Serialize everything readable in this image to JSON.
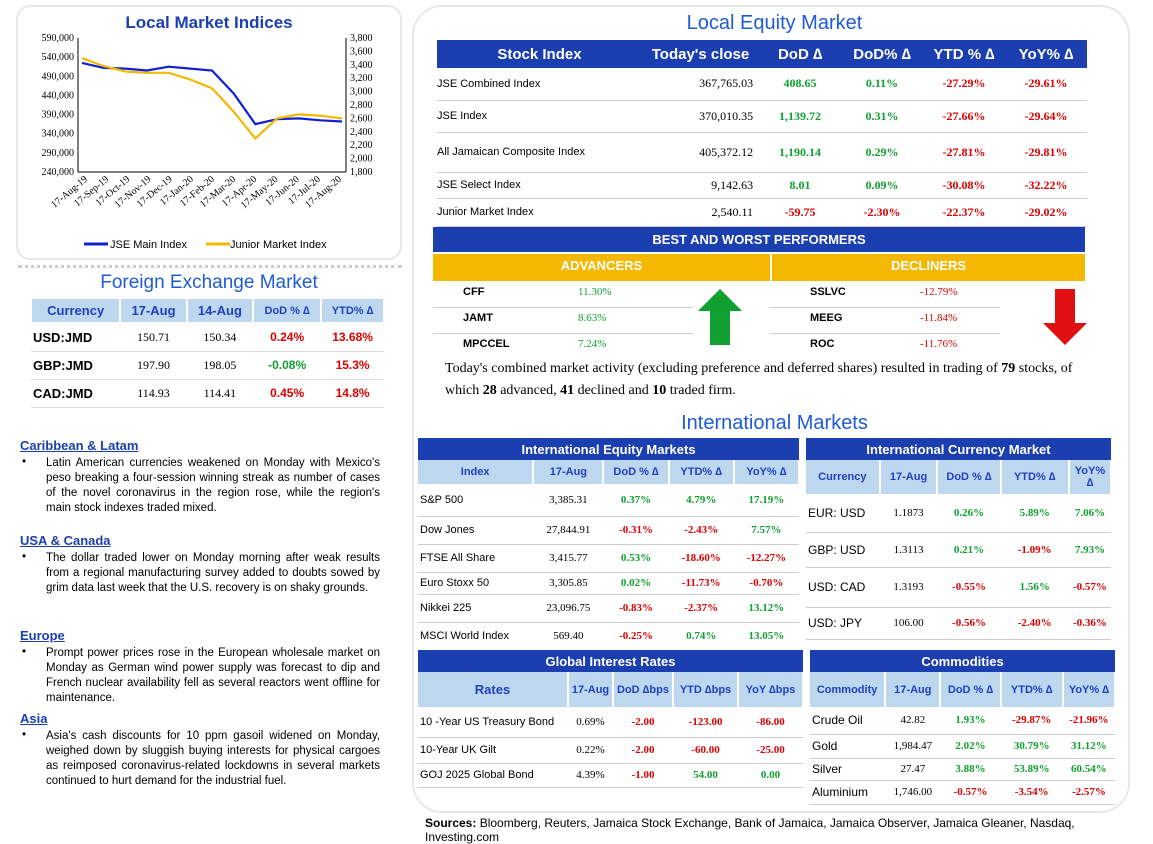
{
  "chart": {
    "title": "Local Market Indices",
    "left_ticks": [
      "590,000",
      "540,000",
      "490,000",
      "440,000",
      "390,000",
      "340,000",
      "290,000",
      "240,000"
    ],
    "right_ticks": [
      "3,800",
      "3,600",
      "3,400",
      "3,200",
      "3,000",
      "2,800",
      "2,600",
      "2,400",
      "2,200",
      "2,000",
      "1,800"
    ],
    "x_ticks": [
      "17-Aug-19",
      "17-Sep-19",
      "17-Oct-19",
      "17-Nov-19",
      "17-Dec-19",
      "17-Jan-20",
      "17-Feb-20",
      "17-Mar-20",
      "17-Apr-20",
      "17-May-20",
      "17-Jun-20",
      "17-Jul-20",
      "17-Aug-20"
    ],
    "legend_main": "JSE Main Index",
    "legend_junior": "Junior Market Index"
  },
  "chart_data": {
    "type": "line",
    "title": "Local Market Indices",
    "x": [
      "17-Aug-19",
      "17-Sep-19",
      "17-Oct-19",
      "17-Nov-19",
      "17-Dec-19",
      "17-Jan-20",
      "17-Feb-20",
      "17-Mar-20",
      "17-Apr-20",
      "17-May-20",
      "17-Jun-20",
      "17-Jul-20",
      "17-Aug-20"
    ],
    "series": [
      {
        "name": "JSE Main Index",
        "axis": "left",
        "color": "#1020d0",
        "values": [
          525000,
          512000,
          510000,
          505000,
          515000,
          510000,
          505000,
          445000,
          365000,
          378000,
          380000,
          375000,
          372000
        ]
      },
      {
        "name": "Junior Market Index",
        "axis": "right",
        "color": "#f5b800",
        "values": [
          3500,
          3380,
          3300,
          3280,
          3280,
          3180,
          3050,
          2700,
          2300,
          2600,
          2660,
          2640,
          2600
        ]
      }
    ],
    "ylim_left": [
      240000,
      590000
    ],
    "ylim_right": [
      1800,
      3800
    ]
  },
  "fx": {
    "title": "Foreign Exchange Market",
    "headers": [
      "Currency",
      "17-Aug",
      "14-Aug",
      "DoD % ∆",
      "YTD% ∆"
    ],
    "rows": [
      {
        "c": "USD:JMD",
        "a": "150.71",
        "b": "150.34",
        "d": "0.24%",
        "ds": "neg",
        "y": "13.68%",
        "ys": "neg"
      },
      {
        "c": "GBP:JMD",
        "a": "197.90",
        "b": "198.05",
        "d": "-0.08%",
        "ds": "pos",
        "y": "15.3%",
        "ys": "neg"
      },
      {
        "c": "CAD:JMD",
        "a": "114.93",
        "b": "114.41",
        "d": "0.45%",
        "ds": "neg",
        "y": "14.8%",
        "ys": "neg"
      }
    ]
  },
  "news": [
    {
      "h": "Caribbean & Latam",
      "t": "Latin American currencies weakened on Monday with Mexico's peso breaking a four-session winning streak as number of cases of the novel coronavirus in the region rose, while the region's main stock indexes traded mixed."
    },
    {
      "h": "USA & Canada",
      "t": "The dollar traded lower on Monday morning after weak results from a regional manufacturing survey added to doubts sowed by grim data last week that the U.S. recovery is on shaky grounds."
    },
    {
      "h": "Europe",
      "t": "Prompt power prices rose in the European wholesale market on Monday as German wind power supply was forecast to dip and French nuclear availability fell as several reactors went offline for maintenance."
    },
    {
      "h": "Asia",
      "t": "Asia's cash discounts for 10 ppm gasoil widened on Monday, weighed down by sluggish buying interests for physical cargoes as reimposed coronavirus-related lockdowns in several markets continued to hurt demand for the industrial fuel."
    }
  ],
  "equity": {
    "title": "Local Equity Market",
    "headers": [
      "Stock Index",
      "Today's close",
      "DoD ∆",
      "DoD% ∆",
      "YTD % ∆",
      "YoY% ∆"
    ],
    "rows": [
      {
        "n": "JSE Combined Index",
        "c": "367,765.03",
        "d": "408.65",
        "ds": "pos",
        "p": "0.11%",
        "ps": "pos",
        "y": "-27.29%",
        "o": "-29.61%"
      },
      {
        "n": "JSE Index",
        "c": "370,010.35",
        "d": "1,139.72",
        "ds": "pos",
        "p": "0.31%",
        "ps": "pos",
        "y": "-27.66%",
        "o": "-29.64%"
      },
      {
        "n": "All Jamaican Composite Index",
        "c": "405,372.12",
        "d": "1,190.14",
        "ds": "pos",
        "p": "0.29%",
        "ps": "pos",
        "y": "-27.81%",
        "o": "-29.81%"
      },
      {
        "n": "JSE Select Index",
        "c": "9,142.63",
        "d": "8.01",
        "ds": "pos",
        "p": "0.09%",
        "ps": "pos",
        "y": "-30.08%",
        "o": "-32.22%"
      },
      {
        "n": "Junior Market Index",
        "c": "2,540.11",
        "d": "-59.75",
        "ds": "neg",
        "p": "-2.30%",
        "ps": "neg",
        "y": "-22.37%",
        "o": "-29.02%"
      }
    ]
  },
  "performers": {
    "title": "BEST AND WORST PERFORMERS",
    "adv_label": "ADVANCERS",
    "dec_label": "DECLINERS",
    "advancers": [
      {
        "s": "CFF",
        "v": "11.30%"
      },
      {
        "s": "JAMT",
        "v": "8.63%"
      },
      {
        "s": "MPCCEL",
        "v": "7.24%"
      }
    ],
    "decliners": [
      {
        "s": "SSLVC",
        "v": "-12.79%"
      },
      {
        "s": "MEEG",
        "v": "-11.84%"
      },
      {
        "s": "ROC",
        "v": "-11.76%"
      }
    ]
  },
  "summary": {
    "p1": "Today's combined market activity (excluding preference and deferred shares) resulted in trading of ",
    "n1": "79",
    "p2": " stocks, of which ",
    "n2": "28",
    "p3": " advanced, ",
    "n3": "41",
    "p4": " declined and ",
    "n4": "10",
    "p5": " traded firm."
  },
  "intl": {
    "title": "International Markets"
  },
  "ieq": {
    "title": "International Equity Markets",
    "headers": [
      "Index",
      "17-Aug",
      "DoD % ∆",
      "YTD% ∆",
      "YoY% ∆"
    ],
    "rows": [
      {
        "n": "S&P 500",
        "v": "3,385.31",
        "d": "0.37%",
        "ds": "pos",
        "y": "4.79%",
        "ys": "pos",
        "o": "17.19%",
        "os": "pos"
      },
      {
        "n": "Dow Jones",
        "v": "27,844.91",
        "d": "-0.31%",
        "ds": "neg",
        "y": "-2.43%",
        "ys": "neg",
        "o": "7.57%",
        "os": "pos"
      },
      {
        "n": "FTSE All Share",
        "v": "3,415.77",
        "d": "0.53%",
        "ds": "pos",
        "y": "-18.60%",
        "ys": "neg",
        "o": "-12.27%",
        "os": "neg"
      },
      {
        "n": "Euro Stoxx 50",
        "v": "3,305.85",
        "d": "0.02%",
        "ds": "pos",
        "y": "-11.73%",
        "ys": "neg",
        "o": "-0.70%",
        "os": "neg"
      },
      {
        "n": "Nikkei 225",
        "v": "23,096.75",
        "d": "-0.83%",
        "ds": "neg",
        "y": "-2.37%",
        "ys": "neg",
        "o": "13.12%",
        "os": "pos"
      },
      {
        "n": "MSCI World Index",
        "v": "569.40",
        "d": "-0.25%",
        "ds": "neg",
        "y": "0.74%",
        "ys": "pos",
        "o": "13.05%",
        "os": "pos"
      }
    ]
  },
  "icur": {
    "title": "International Currency Market",
    "headers": [
      "Currency",
      "17-Aug",
      "DoD % ∆",
      "YTD% ∆",
      "YoY% ∆"
    ],
    "rows": [
      {
        "n": "EUR: USD",
        "v": "1.1873",
        "d": "0.26%",
        "ds": "pos",
        "y": "5.89%",
        "ys": "pos",
        "o": "7.06%",
        "os": "pos"
      },
      {
        "n": "GBP: USD",
        "v": "1.3113",
        "d": "0.21%",
        "ds": "pos",
        "y": "-1.09%",
        "ys": "neg",
        "o": "7.93%",
        "os": "pos"
      },
      {
        "n": "USD: CAD",
        "v": "1.3193",
        "d": "-0.55%",
        "ds": "neg",
        "y": "1.56%",
        "ys": "pos",
        "o": "-0.57%",
        "os": "neg"
      },
      {
        "n": "USD: JPY",
        "v": "106.00",
        "d": "-0.56%",
        "ds": "neg",
        "y": "-2.40%",
        "ys": "neg",
        "o": "-0.36%",
        "os": "neg"
      }
    ]
  },
  "rates": {
    "title": "Global Interest Rates",
    "headers": [
      "Rates",
      "17-Aug",
      "DoD ∆bps",
      "YTD ∆bps",
      "YoY ∆bps"
    ],
    "rows": [
      {
        "n": "10 -Year US Treasury Bond",
        "v": "0.69%",
        "d": "-2.00",
        "ds": "neg",
        "y": "-123.00",
        "ys": "neg",
        "o": "-86.00",
        "os": "neg"
      },
      {
        "n": "10-Year UK Gilt",
        "v": "0.22%",
        "d": "-2.00",
        "ds": "neg",
        "y": "-60.00",
        "ys": "neg",
        "o": "-25.00",
        "os": "neg"
      },
      {
        "n": "GOJ 2025 Global Bond",
        "v": "4.39%",
        "d": "-1.00",
        "ds": "neg",
        "y": "54.00",
        "ys": "pos",
        "o": "0.00",
        "os": "pos"
      }
    ]
  },
  "comm": {
    "title": "Commodities",
    "headers": [
      "Commodity",
      "17-Aug",
      "DoD % ∆",
      "YTD% ∆",
      "YoY% ∆"
    ],
    "rows": [
      {
        "n": "Crude Oil",
        "v": "42.82",
        "d": "1.93%",
        "ds": "pos",
        "y": "-29.87%",
        "ys": "neg",
        "o": "-21.96%",
        "os": "neg"
      },
      {
        "n": "Gold",
        "v": "1,984.47",
        "d": "2.02%",
        "ds": "pos",
        "y": "30.79%",
        "ys": "pos",
        "o": "31.12%",
        "os": "pos"
      },
      {
        "n": "Silver",
        "v": "27.47",
        "d": "3.88%",
        "ds": "pos",
        "y": "53.89%",
        "ys": "pos",
        "o": "60.54%",
        "os": "pos"
      },
      {
        "n": "Aluminium",
        "v": "1,746.00",
        "d": "-0.57%",
        "ds": "neg",
        "y": "-3.54%",
        "ys": "neg",
        "o": "-2.57%",
        "os": "neg"
      }
    ]
  },
  "sources": {
    "label": "Sources:",
    "text": " Bloomberg, Reuters, Jamaica Stock Exchange, Bank of Jamaica, Jamaica Observer, Jamaica Gleaner, Nasdaq, Investing.com"
  },
  "colors": {
    "blue_header": "#1b3fb0",
    "light_header": "#bdd7ee",
    "gold": "#f5b800",
    "positive": "#10a030",
    "negative": "#e00000"
  }
}
